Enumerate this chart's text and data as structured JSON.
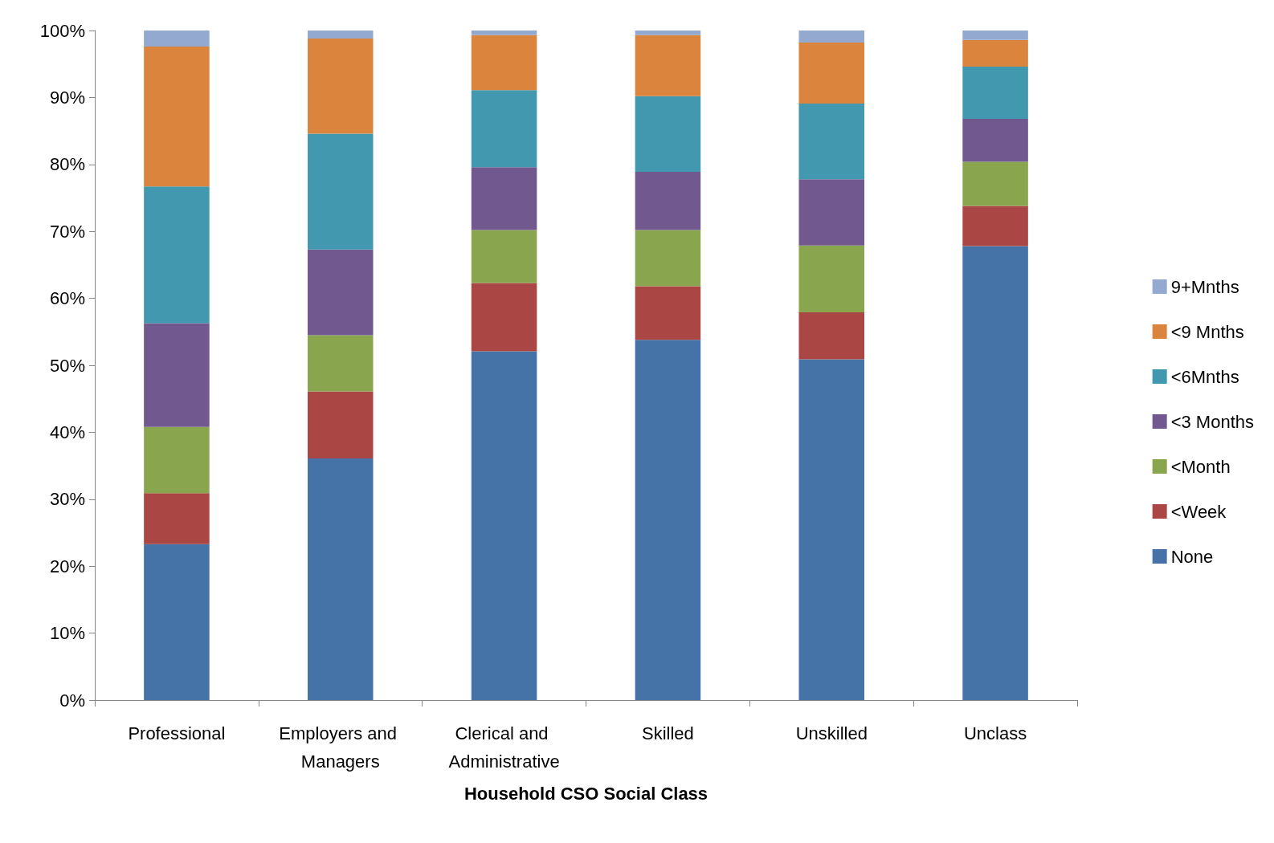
{
  "chart_data": {
    "type": "bar",
    "stacked": true,
    "xlabel": "Household CSO Social Class",
    "categories": [
      "Professional",
      "Employers and Managers",
      "Clerical and Administrative",
      "Skilled",
      "Unskilled",
      "Unclass"
    ],
    "series": [
      {
        "name": "None",
        "color": "#4572a7",
        "values": [
          23.3,
          36.1,
          52.1,
          53.8,
          50.9,
          67.8
        ]
      },
      {
        "name": "<Week",
        "color": "#aa4643",
        "values": [
          7.6,
          10.0,
          10.2,
          8.0,
          7.0,
          6.0
        ]
      },
      {
        "name": "<Month",
        "color": "#89a54e",
        "values": [
          9.9,
          8.4,
          7.9,
          8.4,
          10.0,
          6.6
        ]
      },
      {
        "name": "<3 Months",
        "color": "#71588f",
        "values": [
          15.5,
          12.8,
          9.4,
          8.7,
          9.9,
          6.4
        ]
      },
      {
        "name": "<6Mnths",
        "color": "#4198af",
        "values": [
          20.4,
          17.3,
          11.5,
          11.3,
          11.3,
          7.8
        ]
      },
      {
        "name": "<9 Mnths",
        "color": "#db843d",
        "values": [
          20.9,
          14.2,
          8.2,
          9.1,
          9.1,
          4.0
        ]
      },
      {
        "name": "9+Mnths",
        "color": "#93a9cf",
        "values": [
          2.4,
          1.2,
          0.7,
          0.7,
          1.8,
          1.4
        ]
      }
    ],
    "ylim": [
      0,
      100
    ],
    "yticks": [
      {
        "value": 0,
        "label": "0%"
      },
      {
        "value": 10,
        "label": "10%"
      },
      {
        "value": 20,
        "label": "20%"
      },
      {
        "value": 30,
        "label": "30%"
      },
      {
        "value": 40,
        "label": "40%"
      },
      {
        "value": 50,
        "label": "50%"
      },
      {
        "value": 60,
        "label": "60%"
      },
      {
        "value": 70,
        "label": "70%"
      },
      {
        "value": 80,
        "label": "80%"
      },
      {
        "value": 90,
        "label": "90%"
      },
      {
        "value": 100,
        "label": "100%"
      }
    ],
    "grid": false,
    "legend": "right"
  }
}
